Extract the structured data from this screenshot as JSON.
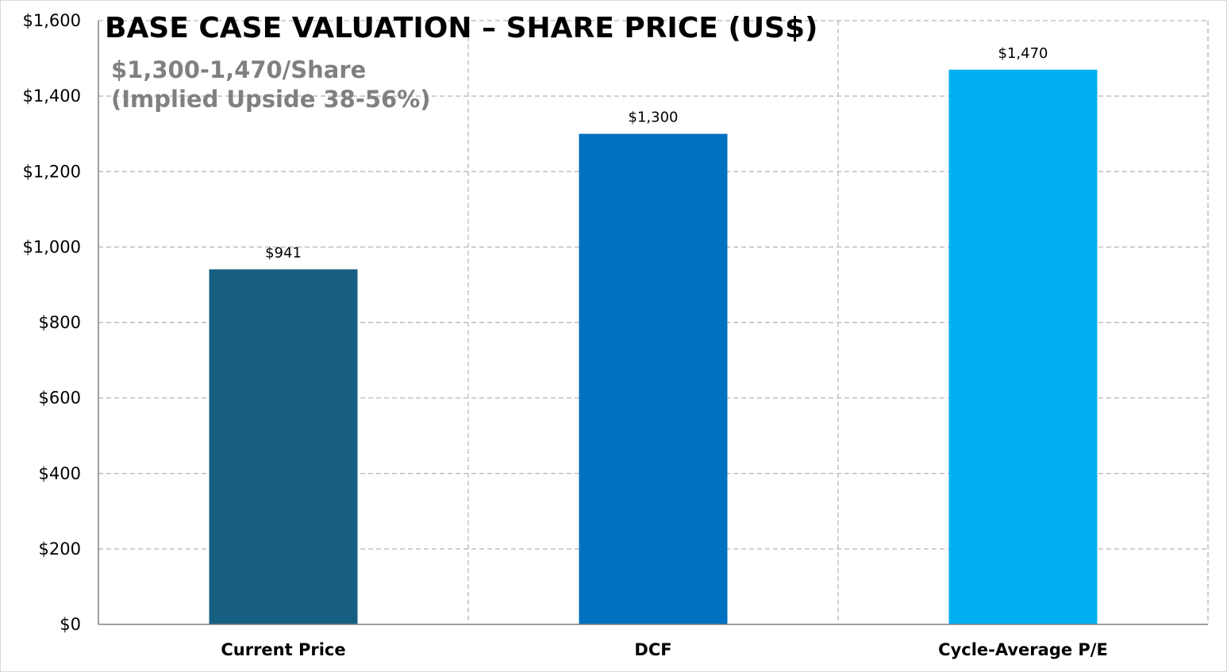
{
  "chart_data": {
    "type": "bar",
    "title": "BASE CASE VALUATION – SHARE PRICE (US$)",
    "subtitle_lines": [
      "$1,300-1,470/Share",
      "(Implied Upside 38-56%)"
    ],
    "categories": [
      "Current Price",
      "DCF",
      "Cycle-Average P/E"
    ],
    "values": [
      941,
      1300,
      1470
    ],
    "data_labels": [
      "$941",
      "$1,300",
      "$1,470"
    ],
    "bar_colors": [
      "#175f82",
      "#0070c0",
      "#00b0f0"
    ],
    "ylim": [
      0,
      1600
    ],
    "yticks": [
      0,
      200,
      400,
      600,
      800,
      1000,
      1200,
      1400,
      1600
    ],
    "ytick_labels": [
      "$0",
      "$200",
      "$400",
      "$600",
      "$800",
      "$1,000",
      "$1,200",
      "$1,400",
      "$1,600"
    ],
    "xlabel": "",
    "ylabel": "",
    "grid": true,
    "legend": "none"
  }
}
